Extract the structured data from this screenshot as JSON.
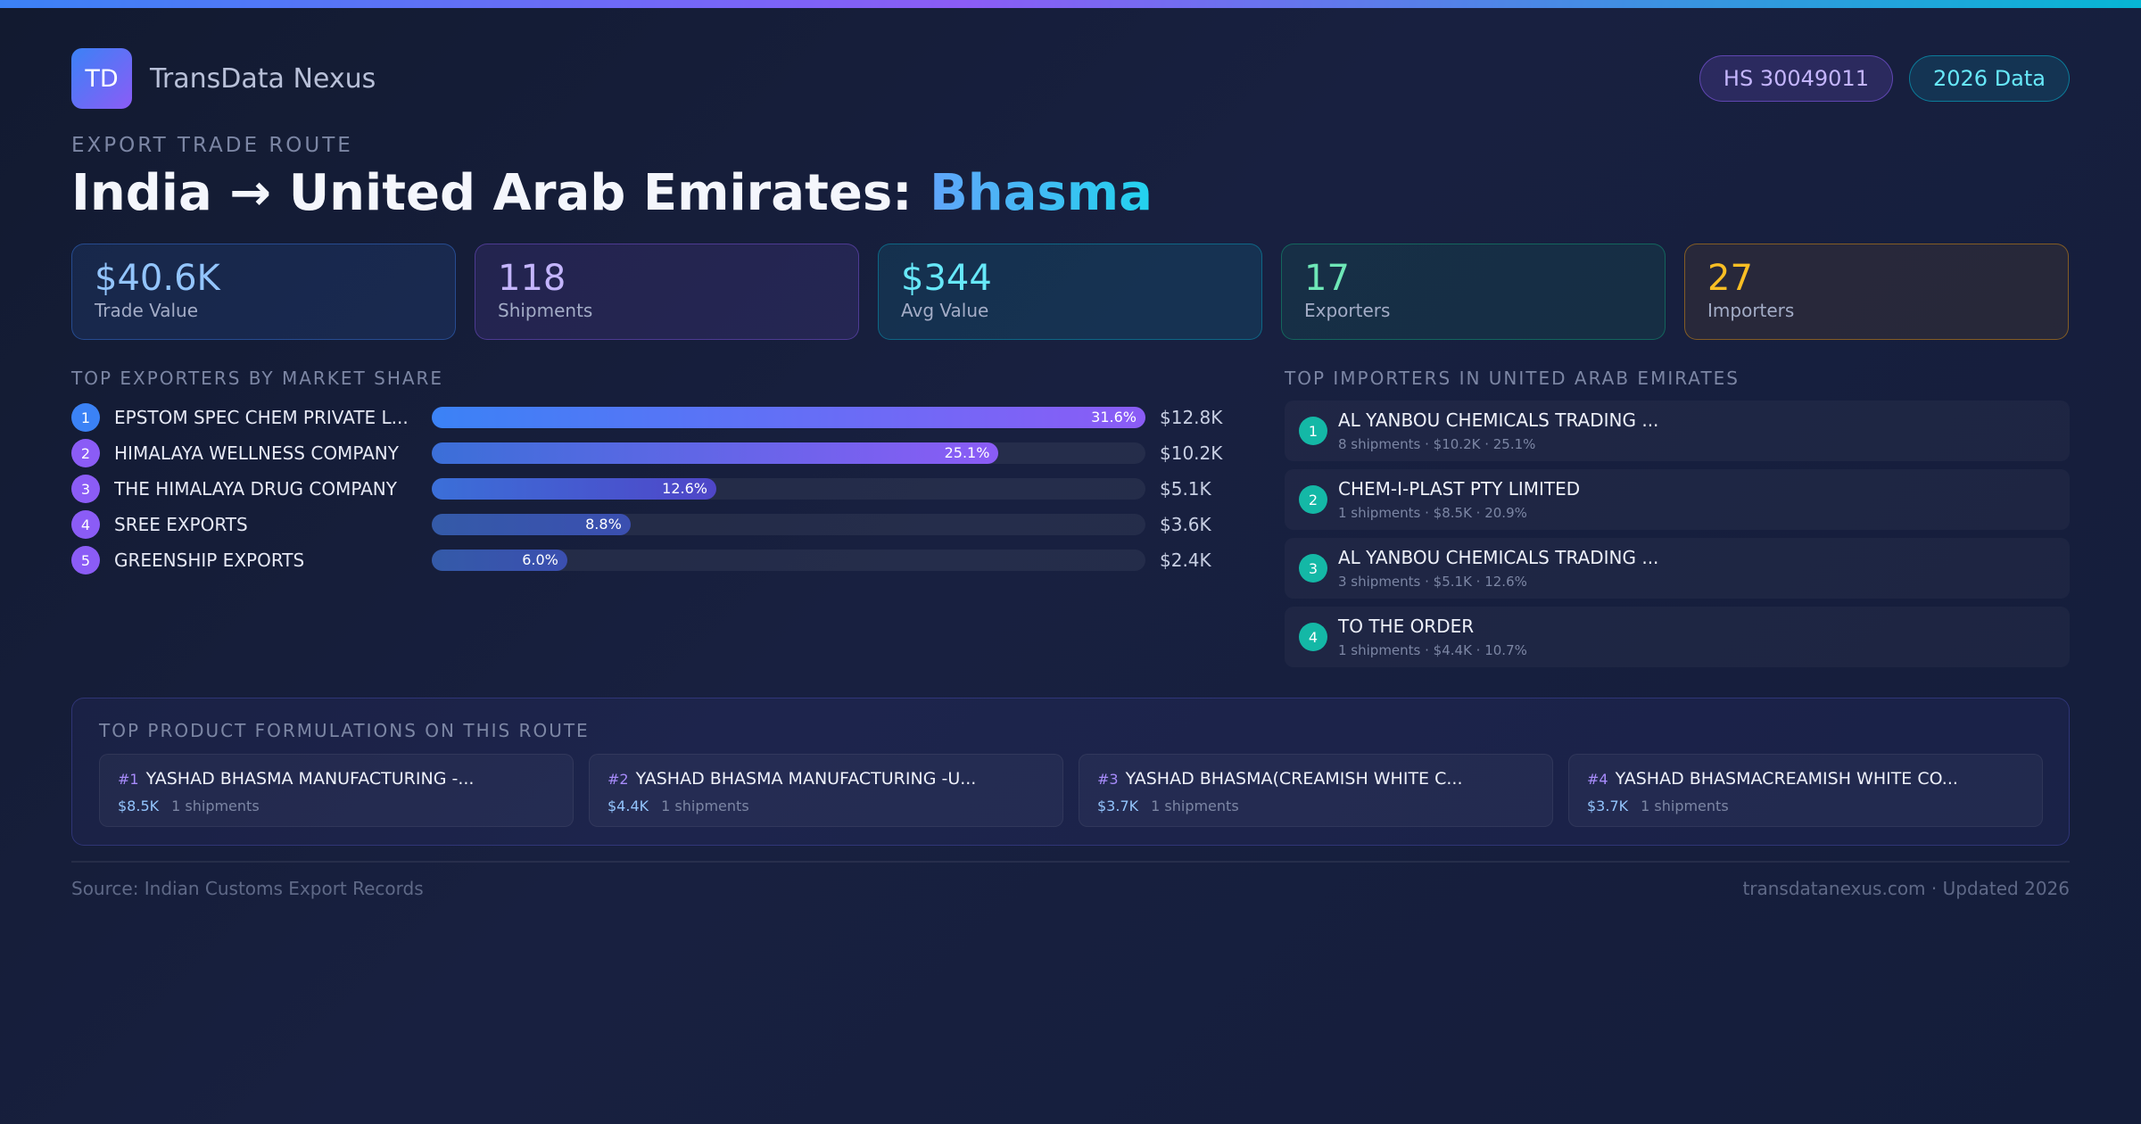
{
  "brand": {
    "logo": "TD",
    "name": "TransData Nexus"
  },
  "pills": {
    "hs": "HS 30049011",
    "year": "2026 Data"
  },
  "eyebrow": "EXPORT TRADE ROUTE",
  "title": {
    "route": "India → United Arab Emirates: ",
    "product": "Bhasma"
  },
  "stats": [
    {
      "value": "$40.6K",
      "label": "Trade Value"
    },
    {
      "value": "118",
      "label": "Shipments"
    },
    {
      "value": "$344",
      "label": "Avg Value"
    },
    {
      "value": "17",
      "label": "Exporters"
    },
    {
      "value": "27",
      "label": "Importers"
    }
  ],
  "exporters": {
    "heading": "TOP EXPORTERS BY MARKET SHARE",
    "items": [
      {
        "rank": "1",
        "name": "EPSTOM SPEC CHEM PRIVATE L...",
        "pct_label": "31.6%",
        "share": 31.6,
        "value": "$12.8K"
      },
      {
        "rank": "2",
        "name": "HIMALAYA WELLNESS COMPANY",
        "pct_label": "25.1%",
        "share": 25.1,
        "value": "$10.2K"
      },
      {
        "rank": "3",
        "name": "THE HIMALAYA DRUG COMPANY",
        "pct_label": "12.6%",
        "share": 12.6,
        "value": "$5.1K"
      },
      {
        "rank": "4",
        "name": "SREE EXPORTS",
        "pct_label": "8.8%",
        "share": 8.8,
        "value": "$3.6K"
      },
      {
        "rank": "5",
        "name": "GREENSHIP EXPORTS",
        "pct_label": "6.0%",
        "share": 6.0,
        "value": "$2.4K"
      }
    ]
  },
  "importers": {
    "heading": "TOP IMPORTERS IN UNITED ARAB EMIRATES",
    "items": [
      {
        "rank": "1",
        "name": "AL YANBOU CHEMICALS TRADING ...",
        "meta": "8 shipments · $10.2K · 25.1%"
      },
      {
        "rank": "2",
        "name": "CHEM-I-PLAST PTY LIMITED",
        "meta": "1 shipments · $8.5K · 20.9%"
      },
      {
        "rank": "3",
        "name": "AL YANBOU CHEMICALS TRADING ...",
        "meta": "3 shipments · $5.1K · 12.6%"
      },
      {
        "rank": "4",
        "name": "TO THE ORDER",
        "meta": "1 shipments · $4.4K · 10.7%"
      }
    ]
  },
  "formulations": {
    "heading": "TOP PRODUCT FORMULATIONS ON THIS ROUTE",
    "items": [
      {
        "rank": "#1",
        "name": "YASHAD BHASMA MANUFACTURING -...",
        "value": "$8.5K",
        "shipments": "1 shipments"
      },
      {
        "rank": "#2",
        "name": "YASHAD BHASMA MANUFACTURING -U...",
        "value": "$4.4K",
        "shipments": "1 shipments"
      },
      {
        "rank": "#3",
        "name": "YASHAD BHASMA(CREAMISH WHITE C...",
        "value": "$3.7K",
        "shipments": "1 shipments"
      },
      {
        "rank": "#4",
        "name": "YASHAD BHASMACREAMISH WHITE CO...",
        "value": "$3.7K",
        "shipments": "1 shipments"
      }
    ]
  },
  "footer": {
    "source": "Source: Indian Customs Export Records",
    "site": "transdatanexus.com · Updated 2026"
  },
  "colors": {
    "exporter_rank": [
      "#3b82f6",
      "#8b5cf6",
      "#8b5cf6",
      "#8b5cf6",
      "#8b5cf6"
    ],
    "importer_rank": "#14b8a6"
  }
}
